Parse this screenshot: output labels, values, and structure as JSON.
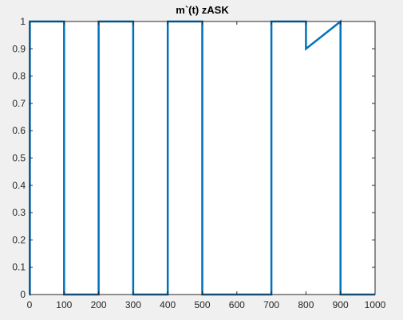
{
  "chart_data": {
    "type": "line",
    "title": "m`(t) zASK",
    "xlabel": "",
    "ylabel": "",
    "xlim": [
      0,
      1000
    ],
    "ylim": [
      0,
      1
    ],
    "xticks": [
      0,
      100,
      200,
      300,
      400,
      500,
      600,
      700,
      800,
      900,
      1000
    ],
    "yticks": [
      0,
      0.1,
      0.2,
      0.3,
      0.4,
      0.5,
      0.6,
      0.7,
      0.8,
      0.9,
      1
    ],
    "xtick_labels": [
      "0",
      "100",
      "200",
      "300",
      "400",
      "500",
      "600",
      "700",
      "800",
      "900",
      "1000"
    ],
    "ytick_labels": [
      "0",
      "0.1",
      "0.2",
      "0.3",
      "0.4",
      "0.5",
      "0.6",
      "0.7",
      "0.8",
      "0.9",
      "1"
    ],
    "grid": false,
    "series": [
      {
        "color": "#0072bd",
        "x": [
          0,
          1,
          1,
          100,
          100,
          200,
          200,
          300,
          300,
          400,
          400,
          500,
          500,
          700,
          700,
          800,
          800,
          900,
          900,
          1000
        ],
        "y": [
          0,
          0,
          1,
          1,
          0,
          0,
          1,
          1,
          0,
          0,
          1,
          1,
          0,
          0,
          1,
          1,
          0.9,
          1,
          0,
          0
        ]
      }
    ]
  }
}
